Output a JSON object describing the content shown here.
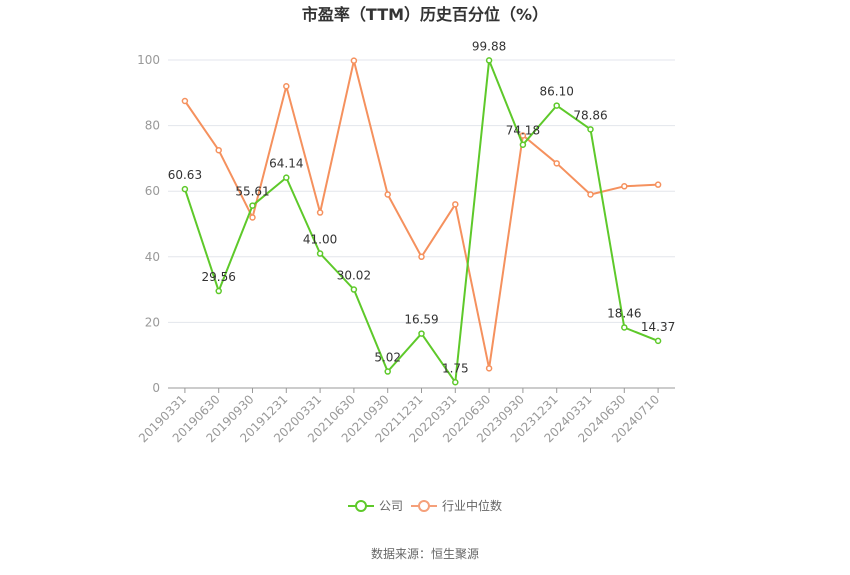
{
  "chart_data": {
    "type": "line",
    "title": "市盈率（TTM）历史百分位（%）",
    "categories": [
      "20190331",
      "20190630",
      "20190930",
      "20191231",
      "20200331",
      "20210630",
      "20210930",
      "20211231",
      "20220331",
      "20220630",
      "20230930",
      "20231231",
      "20240331",
      "20240630",
      "20240710"
    ],
    "ylim": [
      0,
      100
    ],
    "yticks": [
      0,
      20,
      40,
      60,
      80,
      100
    ],
    "grid": true,
    "legend_position": "bottom",
    "series": [
      {
        "name": "公司",
        "color": "#5ec92a",
        "values": [
          60.63,
          29.56,
          55.61,
          64.14,
          41.0,
          30.02,
          5.02,
          16.59,
          1.75,
          99.88,
          74.18,
          86.1,
          78.86,
          18.46,
          14.37
        ],
        "labels": [
          "60.63",
          "29.56",
          "55.61",
          "64.14",
          "41.00",
          "30.02",
          "5.02",
          "16.59",
          "1.75",
          "99.88",
          "74.18",
          "86.10",
          "78.86",
          "18.46",
          "14.37"
        ]
      },
      {
        "name": "行业中位数",
        "color": "#f5915e",
        "values": [
          87.5,
          72.5,
          52.0,
          92.0,
          53.5,
          99.8,
          59.0,
          40.0,
          56.0,
          6.0,
          77.0,
          68.5,
          59.0,
          61.5,
          62.0
        ]
      }
    ]
  },
  "source": "数据来源：恒生聚源"
}
